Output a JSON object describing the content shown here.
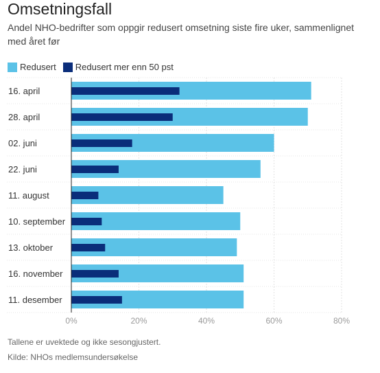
{
  "chart_data": {
    "type": "bar",
    "orientation": "horizontal",
    "title": "Omsetningsfall",
    "subtitle": "Andel NHO-bedrifter som oppgir redusert omsetning siste fire uker, sammenlignet med året før",
    "categories": [
      "16. april",
      "28. april",
      "02. juni",
      "22. juni",
      "11. august",
      "10. september",
      "13. oktober",
      "16. november",
      "11. desember"
    ],
    "series": [
      {
        "name": "Redusert",
        "color": "#5bc2e7",
        "values": [
          71,
          70,
          60,
          56,
          45,
          50,
          49,
          51,
          51
        ]
      },
      {
        "name": "Redusert mer enn 50 pst",
        "color": "#0a2d7a",
        "values": [
          32,
          30,
          18,
          14,
          8,
          9,
          10,
          14,
          15
        ]
      }
    ],
    "xlim": [
      0,
      80
    ],
    "xticks": [
      0,
      20,
      40,
      60,
      80
    ],
    "tick_suffix": "%",
    "grid": true,
    "legend_position": "top-left"
  },
  "footer": {
    "note": "Tallene er uvektede og ikke sesongjustert.",
    "source": "Kilde: NHOs medlemsundersøkelse"
  }
}
